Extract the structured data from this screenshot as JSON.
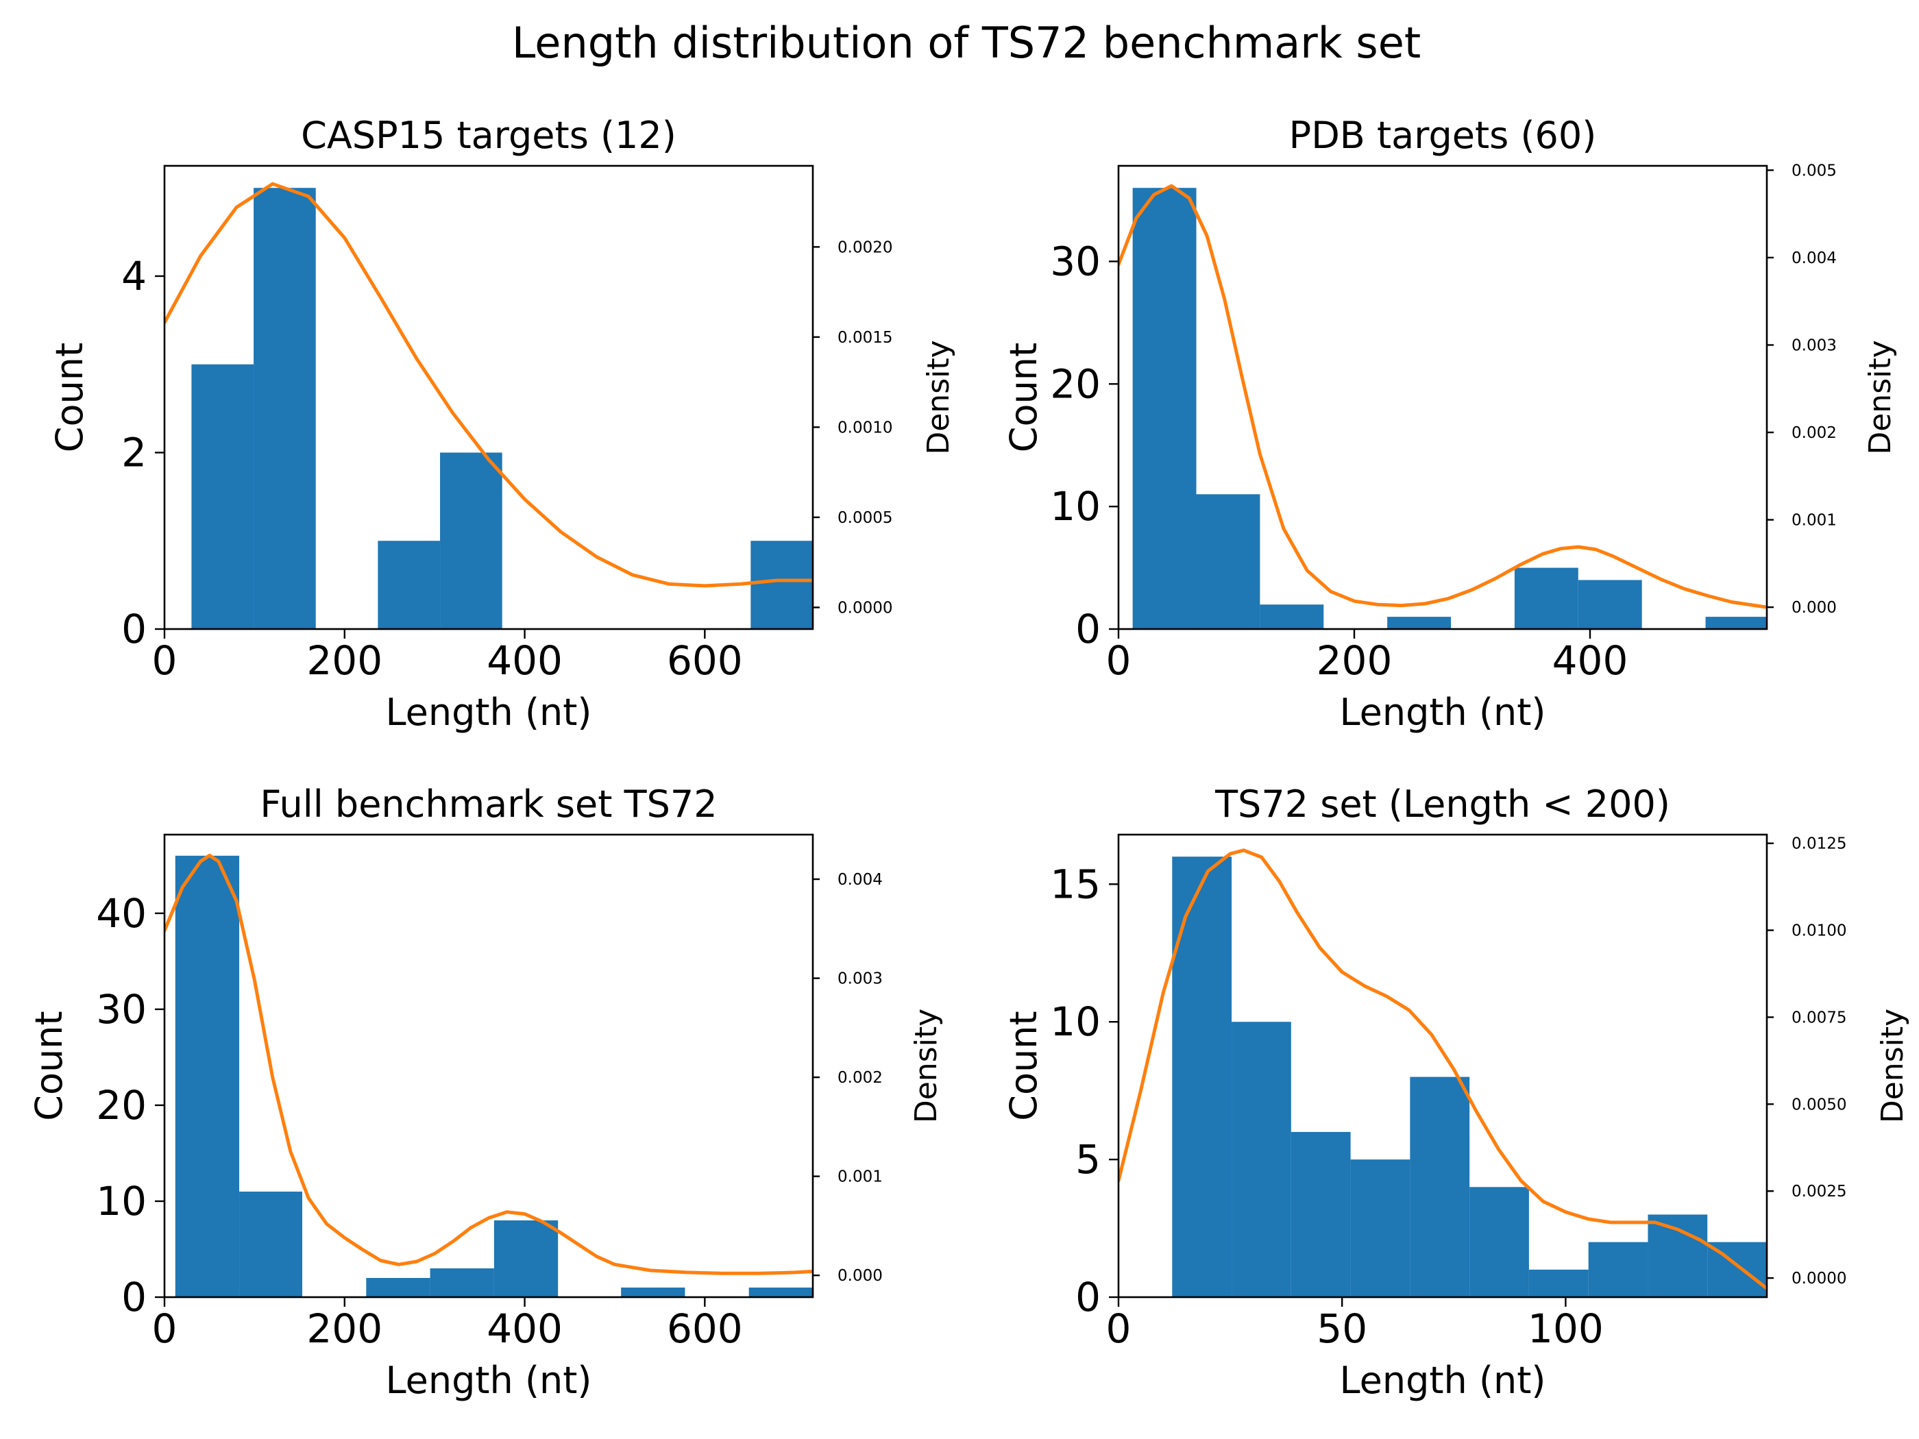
{
  "figure": {
    "title": "Length distribution of TS72 benchmark set"
  },
  "chart_data": [
    {
      "type": "bar",
      "title": "CASP15 targets (12)",
      "xlabel": "Length (nt)",
      "ylabel": "Count",
      "y2label": "Density",
      "xlim": [
        0,
        720
      ],
      "ylim": [
        0,
        5.25
      ],
      "y2lim": [
        -0.00012,
        0.00245
      ],
      "xticks": [
        "0",
        "200",
        "400",
        "600"
      ],
      "xtick_values": [
        0,
        200,
        400,
        600
      ],
      "yticks": [
        "0",
        "2",
        "4"
      ],
      "ytick_values": [
        0,
        2,
        4
      ],
      "y2ticks": [
        "0.0000",
        "0.0005",
        "0.0010",
        "0.0015",
        "0.0020"
      ],
      "y2tick_values": [
        0,
        0.0005,
        0.001,
        0.0015,
        0.002
      ],
      "bins": [
        {
          "x0": 30,
          "x1": 99,
          "count": 3
        },
        {
          "x0": 99,
          "x1": 168,
          "count": 5
        },
        {
          "x0": 168,
          "x1": 237,
          "count": 0
        },
        {
          "x0": 237,
          "x1": 306,
          "count": 1
        },
        {
          "x0": 306,
          "x1": 375,
          "count": 2
        },
        {
          "x0": 375,
          "x1": 444,
          "count": 0
        },
        {
          "x0": 444,
          "x1": 513,
          "count": 0
        },
        {
          "x0": 513,
          "x1": 582,
          "count": 0
        },
        {
          "x0": 582,
          "x1": 651,
          "count": 0
        },
        {
          "x0": 651,
          "x1": 720,
          "count": 1
        }
      ],
      "density": [
        [
          0,
          0.00158
        ],
        [
          40,
          0.00195
        ],
        [
          80,
          0.00222
        ],
        [
          120,
          0.00235
        ],
        [
          160,
          0.00228
        ],
        [
          200,
          0.00205
        ],
        [
          240,
          0.00172
        ],
        [
          280,
          0.00138
        ],
        [
          320,
          0.00108
        ],
        [
          360,
          0.00082
        ],
        [
          400,
          0.0006
        ],
        [
          440,
          0.00042
        ],
        [
          480,
          0.00028
        ],
        [
          520,
          0.00018
        ],
        [
          560,
          0.00013
        ],
        [
          600,
          0.00012
        ],
        [
          640,
          0.00013
        ],
        [
          680,
          0.00015
        ],
        [
          720,
          0.00015
        ]
      ],
      "bar_color": "#1f77b4",
      "line_color": "#ff7f0e"
    },
    {
      "type": "bar",
      "title": "PDB targets (60)",
      "xlabel": "Length (nt)",
      "ylabel": "Count",
      "y2label": "Density",
      "xlim": [
        0,
        550
      ],
      "ylim": [
        0,
        37.8
      ],
      "y2lim": [
        -0.00025,
        0.00505
      ],
      "xticks": [
        "0",
        "200",
        "400"
      ],
      "xtick_values": [
        0,
        200,
        400
      ],
      "yticks": [
        "0",
        "10",
        "20",
        "30"
      ],
      "ytick_values": [
        0,
        10,
        20,
        30
      ],
      "y2ticks": [
        "0.000",
        "0.001",
        "0.002",
        "0.003",
        "0.004",
        "0.005"
      ],
      "y2tick_values": [
        0,
        0.001,
        0.002,
        0.003,
        0.004,
        0.005
      ],
      "bins": [
        {
          "x0": 12,
          "x1": 66,
          "count": 36
        },
        {
          "x0": 66,
          "x1": 120,
          "count": 11
        },
        {
          "x0": 120,
          "x1": 174,
          "count": 2
        },
        {
          "x0": 174,
          "x1": 228,
          "count": 0
        },
        {
          "x0": 228,
          "x1": 282,
          "count": 1
        },
        {
          "x0": 282,
          "x1": 336,
          "count": 0
        },
        {
          "x0": 336,
          "x1": 390,
          "count": 5
        },
        {
          "x0": 390,
          "x1": 444,
          "count": 4
        },
        {
          "x0": 444,
          "x1": 498,
          "count": 0
        },
        {
          "x0": 498,
          "x1": 552,
          "count": 1
        }
      ],
      "density": [
        [
          0,
          0.00392
        ],
        [
          15,
          0.00445
        ],
        [
          30,
          0.00472
        ],
        [
          45,
          0.00482
        ],
        [
          60,
          0.00468
        ],
        [
          75,
          0.00425
        ],
        [
          90,
          0.00352
        ],
        [
          105,
          0.00262
        ],
        [
          120,
          0.00175
        ],
        [
          140,
          0.0009
        ],
        [
          160,
          0.00042
        ],
        [
          180,
          0.00018
        ],
        [
          200,
          7e-05
        ],
        [
          220,
          3e-05
        ],
        [
          240,
          2e-05
        ],
        [
          260,
          4e-05
        ],
        [
          280,
          0.0001
        ],
        [
          300,
          0.0002
        ],
        [
          320,
          0.00033
        ],
        [
          340,
          0.00048
        ],
        [
          360,
          0.00061
        ],
        [
          375,
          0.00067
        ],
        [
          390,
          0.00069
        ],
        [
          405,
          0.00066
        ],
        [
          420,
          0.00058
        ],
        [
          440,
          0.00045
        ],
        [
          460,
          0.00032
        ],
        [
          480,
          0.00021
        ],
        [
          500,
          0.00013
        ],
        [
          520,
          6e-05
        ],
        [
          540,
          2e-05
        ],
        [
          550,
          0.0
        ]
      ],
      "bar_color": "#1f77b4",
      "line_color": "#ff7f0e"
    },
    {
      "type": "bar",
      "title": "Full benchmark set TS72",
      "xlabel": "Length (nt)",
      "ylabel": "Count",
      "y2label": "Density",
      "xlim": [
        0,
        720
      ],
      "ylim": [
        0,
        48.2
      ],
      "y2lim": [
        -0.00022,
        0.00445
      ],
      "xticks": [
        "0",
        "200",
        "400",
        "600"
      ],
      "xtick_values": [
        0,
        200,
        400,
        600
      ],
      "yticks": [
        "0",
        "10",
        "20",
        "30",
        "40"
      ],
      "ytick_values": [
        0,
        10,
        20,
        30,
        40
      ],
      "y2ticks": [
        "0.000",
        "0.001",
        "0.002",
        "0.003",
        "0.004"
      ],
      "y2tick_values": [
        0,
        0.001,
        0.002,
        0.003,
        0.004
      ],
      "bins": [
        {
          "x0": 12,
          "x1": 83,
          "count": 46
        },
        {
          "x0": 83,
          "x1": 153,
          "count": 11
        },
        {
          "x0": 153,
          "x1": 224,
          "count": 0
        },
        {
          "x0": 224,
          "x1": 295,
          "count": 2
        },
        {
          "x0": 295,
          "x1": 366,
          "count": 3
        },
        {
          "x0": 366,
          "x1": 437,
          "count": 8
        },
        {
          "x0": 437,
          "x1": 507,
          "count": 0
        },
        {
          "x0": 507,
          "x1": 578,
          "count": 1
        },
        {
          "x0": 578,
          "x1": 649,
          "count": 0
        },
        {
          "x0": 649,
          "x1": 720,
          "count": 1
        }
      ],
      "density": [
        [
          0,
          0.00348
        ],
        [
          20,
          0.00392
        ],
        [
          40,
          0.00418
        ],
        [
          50,
          0.00424
        ],
        [
          60,
          0.00418
        ],
        [
          80,
          0.00378
        ],
        [
          100,
          0.00298
        ],
        [
          120,
          0.002
        ],
        [
          140,
          0.00125
        ],
        [
          160,
          0.00078
        ],
        [
          180,
          0.00052
        ],
        [
          200,
          0.00038
        ],
        [
          220,
          0.00026
        ],
        [
          240,
          0.00015
        ],
        [
          260,
          0.00011
        ],
        [
          280,
          0.00014
        ],
        [
          300,
          0.00022
        ],
        [
          320,
          0.00034
        ],
        [
          340,
          0.00048
        ],
        [
          360,
          0.00058
        ],
        [
          380,
          0.00064
        ],
        [
          400,
          0.00062
        ],
        [
          420,
          0.00054
        ],
        [
          440,
          0.00043
        ],
        [
          460,
          0.00031
        ],
        [
          480,
          0.00019
        ],
        [
          500,
          0.00011
        ],
        [
          540,
          5e-05
        ],
        [
          580,
          3e-05
        ],
        [
          620,
          2e-05
        ],
        [
          660,
          2e-05
        ],
        [
          700,
          3e-05
        ],
        [
          720,
          4e-05
        ]
      ],
      "bar_color": "#1f77b4",
      "line_color": "#ff7f0e"
    },
    {
      "type": "bar",
      "title": "TS72 set (Length < 200)",
      "xlabel": "Length (nt)",
      "ylabel": "Count",
      "y2label": "Density",
      "xlim": [
        0,
        145
      ],
      "ylim": [
        0,
        16.8
      ],
      "y2lim": [
        -0.00055,
        0.01275
      ],
      "xticks": [
        "0",
        "50",
        "100"
      ],
      "xtick_values": [
        0,
        50,
        100
      ],
      "yticks": [
        "0",
        "5",
        "10",
        "15"
      ],
      "ytick_values": [
        0,
        5,
        10,
        15
      ],
      "y2ticks": [
        "0.0000",
        "0.0025",
        "0.0050",
        "0.0075",
        "0.0100",
        "0.0125"
      ],
      "y2tick_values": [
        0,
        0.0025,
        0.005,
        0.0075,
        0.01,
        0.0125
      ],
      "bins": [
        {
          "x0": 12,
          "x1": 25.3,
          "count": 16
        },
        {
          "x0": 25.3,
          "x1": 38.6,
          "count": 10
        },
        {
          "x0": 38.6,
          "x1": 51.9,
          "count": 6
        },
        {
          "x0": 51.9,
          "x1": 65.2,
          "count": 5
        },
        {
          "x0": 65.2,
          "x1": 78.5,
          "count": 8
        },
        {
          "x0": 78.5,
          "x1": 91.8,
          "count": 4
        },
        {
          "x0": 91.8,
          "x1": 105.1,
          "count": 1
        },
        {
          "x0": 105.1,
          "x1": 118.4,
          "count": 2
        },
        {
          "x0": 118.4,
          "x1": 131.7,
          "count": 3
        },
        {
          "x0": 131.7,
          "x1": 145,
          "count": 2
        }
      ],
      "density": [
        [
          0,
          0.0028
        ],
        [
          5,
          0.0054
        ],
        [
          10,
          0.0082
        ],
        [
          15,
          0.0104
        ],
        [
          20,
          0.0117
        ],
        [
          25,
          0.0122
        ],
        [
          28,
          0.0123
        ],
        [
          32,
          0.0121
        ],
        [
          36,
          0.0114
        ],
        [
          40,
          0.0105
        ],
        [
          45,
          0.0095
        ],
        [
          50,
          0.0088
        ],
        [
          55,
          0.0084
        ],
        [
          60,
          0.0081
        ],
        [
          65,
          0.0077
        ],
        [
          70,
          0.007
        ],
        [
          75,
          0.006
        ],
        [
          80,
          0.0048
        ],
        [
          85,
          0.0037
        ],
        [
          90,
          0.0028
        ],
        [
          95,
          0.0022
        ],
        [
          100,
          0.0019
        ],
        [
          105,
          0.0017
        ],
        [
          110,
          0.0016
        ],
        [
          115,
          0.0016
        ],
        [
          120,
          0.0016
        ],
        [
          125,
          0.0014
        ],
        [
          130,
          0.0011
        ],
        [
          135,
          0.0007
        ],
        [
          140,
          0.0002
        ],
        [
          145,
          -0.0003
        ]
      ],
      "bar_color": "#1f77b4",
      "line_color": "#ff7f0e"
    }
  ]
}
